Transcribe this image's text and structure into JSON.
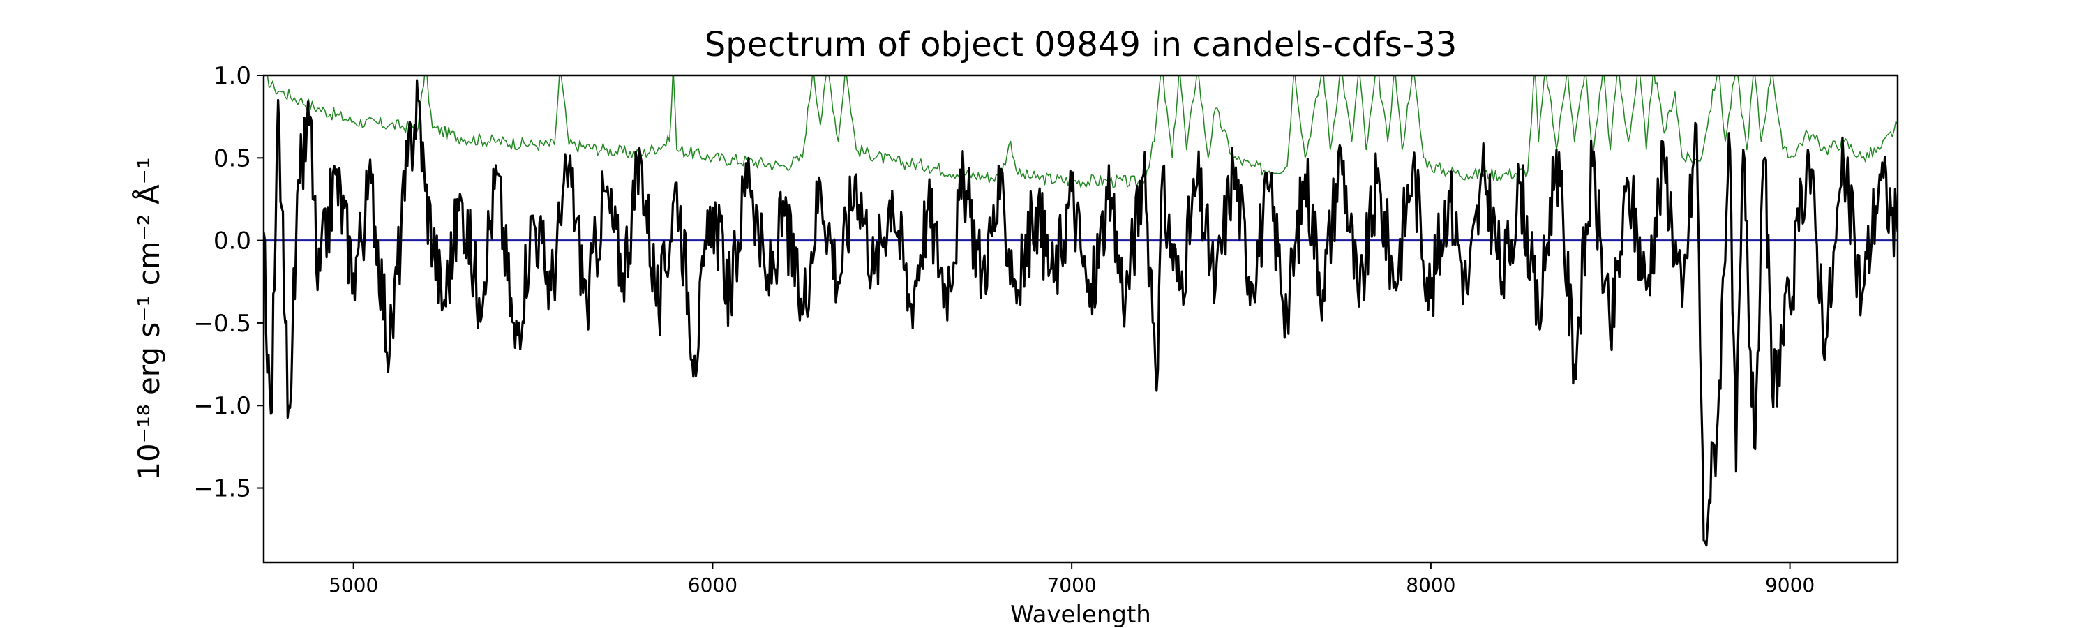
{
  "chart_data": {
    "type": "line",
    "title": "Spectrum of object 09849 in candels-cdfs-33",
    "xlabel": "Wavelength",
    "ylabel": "10⁻¹⁸ erg s⁻¹ cm⁻² Å⁻¹",
    "xlim": [
      4750,
      9300
    ],
    "ylim": [
      -1.95,
      1.0
    ],
    "x_ticks": [
      5000,
      6000,
      7000,
      8000,
      9000
    ],
    "y_ticks": [
      1.0,
      0.5,
      0.0,
      -0.5,
      -1.0,
      -1.5
    ],
    "y_tick_labels": [
      "1.0",
      "0.5",
      "0.0",
      "−0.5",
      "−1.0",
      "−1.5"
    ],
    "grid": false,
    "legend": "none",
    "series": [
      {
        "role": "flux",
        "color": "#000000",
        "x": [
          4750,
          4760,
          4770,
          4780,
          4790,
          4800,
          4810,
          4820,
          4850,
          4880,
          4900,
          4950,
          5000,
          5050,
          5100,
          5150,
          5180,
          5200,
          5250,
          5300,
          5350,
          5400,
          5450,
          5500,
          5550,
          5600,
          5650,
          5700,
          5750,
          5800,
          5850,
          5900,
          5950,
          6000,
          6050,
          6100,
          6150,
          6200,
          6250,
          6300,
          6350,
          6400,
          6450,
          6500,
          6550,
          6600,
          6650,
          6700,
          6750,
          6800,
          6850,
          6900,
          6950,
          7000,
          7050,
          7100,
          7150,
          7200,
          7240,
          7250,
          7300,
          7350,
          7400,
          7450,
          7500,
          7550,
          7600,
          7650,
          7700,
          7750,
          7800,
          7850,
          7900,
          7950,
          8000,
          8050,
          8100,
          8150,
          8200,
          8250,
          8300,
          8350,
          8400,
          8450,
          8500,
          8550,
          8600,
          8650,
          8700,
          8740,
          8760,
          8775,
          8800,
          8830,
          8850,
          8870,
          8900,
          8930,
          8950,
          9000,
          9050,
          9100,
          9150,
          9200,
          9250,
          9300
        ],
        "y": [
          0.05,
          -0.8,
          -1.05,
          -0.3,
          0.85,
          0.2,
          -0.5,
          -1.0,
          0.35,
          0.75,
          -0.3,
          0.4,
          -0.2,
          0.35,
          -0.7,
          0.45,
          0.85,
          0.3,
          -0.4,
          0.25,
          -0.35,
          0.4,
          -0.65,
          0.15,
          -0.3,
          0.45,
          -0.4,
          0.3,
          -0.2,
          0.5,
          -0.45,
          0.35,
          -0.7,
          0.2,
          -0.35,
          0.5,
          -0.3,
          0.15,
          -0.45,
          0.35,
          -0.25,
          0.4,
          -0.2,
          0.3,
          -0.4,
          0.2,
          -0.3,
          0.35,
          -0.2,
          0.25,
          -0.3,
          0.2,
          -0.25,
          0.3,
          -0.4,
          0.25,
          -0.35,
          0.4,
          -0.78,
          0.3,
          -0.3,
          0.35,
          -0.3,
          0.45,
          -0.25,
          0.3,
          -0.45,
          0.4,
          -0.3,
          0.55,
          -0.4,
          0.35,
          -0.25,
          0.45,
          -0.35,
          0.3,
          -0.3,
          0.4,
          -0.25,
          0.35,
          -0.5,
          0.55,
          -0.75,
          0.45,
          -0.6,
          0.35,
          -0.3,
          0.5,
          -0.4,
          0.7,
          -1.82,
          -1.57,
          -1.05,
          0.65,
          -1.4,
          0.55,
          -1.25,
          0.5,
          -0.9,
          -0.4,
          0.55,
          -0.6,
          0.45,
          -0.35,
          0.4,
          0.05
        ],
        "noise_amplitude": 0.25
      },
      {
        "role": "error",
        "color": "#228822",
        "x": [
          4750,
          4780,
          4800,
          4850,
          4900,
          5000,
          5100,
          5180,
          5200,
          5220,
          5300,
          5400,
          5500,
          5560,
          5575,
          5600,
          5700,
          5800,
          5880,
          5890,
          5900,
          6000,
          6100,
          6200,
          6250,
          6280,
          6300,
          6320,
          6350,
          6370,
          6400,
          6500,
          6600,
          6700,
          6800,
          6830,
          6850,
          6900,
          7000,
          7100,
          7200,
          7230,
          7250,
          7280,
          7300,
          7320,
          7350,
          7380,
          7400,
          7450,
          7500,
          7550,
          7600,
          7620,
          7650,
          7700,
          7720,
          7750,
          7780,
          7800,
          7820,
          7850,
          7880,
          7900,
          7920,
          7950,
          7980,
          8000,
          8050,
          8100,
          8200,
          8270,
          8290,
          8300,
          8320,
          8350,
          8380,
          8400,
          8430,
          8450,
          8480,
          8500,
          8520,
          8550,
          8580,
          8600,
          8620,
          8650,
          8680,
          8700,
          8750,
          8800,
          8820,
          8850,
          8880,
          8900,
          8920,
          8950,
          8980,
          9000,
          9050,
          9100,
          9150,
          9200,
          9250,
          9300
        ],
        "y": [
          1.0,
          0.92,
          0.9,
          0.85,
          0.8,
          0.72,
          0.7,
          0.68,
          1.05,
          0.68,
          0.62,
          0.6,
          0.58,
          0.58,
          1.05,
          0.58,
          0.55,
          0.52,
          0.6,
          1.05,
          0.55,
          0.5,
          0.48,
          0.45,
          0.5,
          1.05,
          0.7,
          1.05,
          0.6,
          1.05,
          0.55,
          0.48,
          0.45,
          0.4,
          0.38,
          0.6,
          0.4,
          0.38,
          0.36,
          0.36,
          0.35,
          0.6,
          1.05,
          0.5,
          1.05,
          0.55,
          1.05,
          0.5,
          0.8,
          0.5,
          0.45,
          0.42,
          0.45,
          1.05,
          0.5,
          1.05,
          0.55,
          1.05,
          0.6,
          1.05,
          0.55,
          1.05,
          0.6,
          1.05,
          0.55,
          1.05,
          0.5,
          0.45,
          0.42,
          0.4,
          0.4,
          0.42,
          1.05,
          0.6,
          1.05,
          0.55,
          1.05,
          0.6,
          1.05,
          0.5,
          1.05,
          0.55,
          1.05,
          0.6,
          1.05,
          0.55,
          1.05,
          0.65,
          0.9,
          0.5,
          0.48,
          1.05,
          0.6,
          1.05,
          0.55,
          1.05,
          0.6,
          1.05,
          0.55,
          0.5,
          0.65,
          0.55,
          0.6,
          0.5,
          0.55,
          0.7
        ],
        "noise_amplitude": 0.04
      },
      {
        "role": "zero",
        "color": "#1a1aa0",
        "x": [
          4750,
          9300
        ],
        "y": [
          0.0,
          0.0
        ]
      }
    ]
  }
}
